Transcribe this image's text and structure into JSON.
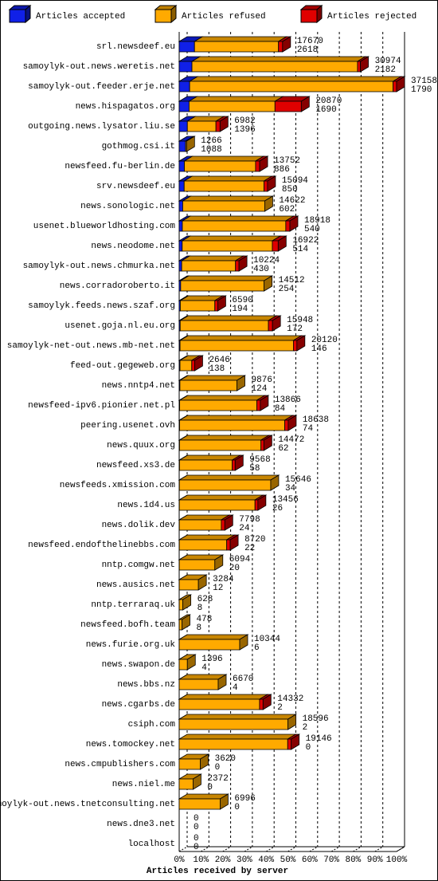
{
  "chart_data": {
    "type": "bar3d-stacked-horizontal",
    "x_label": "Articles received by server",
    "categories": [
      "srl.newsdeef.eu",
      "samoylyk-out.news.weretis.net",
      "samoylyk-out.feeder.erje.net",
      "news.hispagatos.org",
      "outgoing.news.lysator.liu.se",
      "gothmog.csi.it",
      "newsfeed.fu-berlin.de",
      "srv.newsdeef.eu",
      "news.sonologic.net",
      "usenet.blueworldhosting.com",
      "news.neodome.net",
      "samoylyk-out.news.chmurka.net",
      "news.corradoroberto.it",
      "samoylyk.feeds.news.szaf.org",
      "usenet.goja.nl.eu.org",
      "samoylyk-net-out.news.mb-net.net",
      "feed-out.gegeweb.org",
      "news.nntp4.net",
      "newsfeed-ipv6.pionier.net.pl",
      "peering.usenet.ovh",
      "news.quux.org",
      "newsfeed.xs3.de",
      "newsfeeds.xmission.com",
      "news.1d4.us",
      "news.dolik.dev",
      "newsfeed.endofthelinebbs.com",
      "nntp.comgw.net",
      "news.ausics.net",
      "nntp.terraraq.uk",
      "newsfeed.bofh.team",
      "news.furie.org.uk",
      "news.swapon.de",
      "news.bbs.nz",
      "news.cgarbs.de",
      "csiph.com",
      "news.tomockey.net",
      "news.cmpublishers.com",
      "news.niel.me",
      "samoylyk-out.news.tnetconsulting.net",
      "news.dne3.net",
      "localhost"
    ],
    "totals": [
      17670,
      30974,
      37158,
      20870,
      6982,
      1266,
      13752,
      15094,
      14622,
      18918,
      16922,
      10224,
      14512,
      6590,
      15948,
      20120,
      2646,
      9876,
      13866,
      18638,
      14472,
      9568,
      15646,
      13456,
      7798,
      8720,
      6094,
      3284,
      628,
      478,
      10344,
      1396,
      6670,
      14332,
      18596,
      19146,
      3620,
      2372,
      6996,
      0,
      0
    ],
    "series": [
      {
        "name": "Articles accepted",
        "color": "#1020e8",
        "values": [
          2618,
          2182,
          1790,
          1690,
          1396,
          1088,
          886,
          850,
          602,
          540,
          514,
          430,
          254,
          194,
          172,
          146,
          138,
          124,
          84,
          74,
          62,
          58,
          34,
          26,
          24,
          22,
          20,
          12,
          8,
          8,
          6,
          4,
          4,
          2,
          2,
          0,
          0,
          0,
          0,
          0,
          0
        ]
      },
      {
        "name": "Articles refused",
        "color": "#ffaa00",
        "values": [
          14352,
          28292,
          34768,
          14680,
          4886,
          178,
          12166,
          13644,
          14020,
          17678,
          15408,
          9194,
          14258,
          5896,
          15076,
          19374,
          2008,
          9752,
          13182,
          17964,
          13910,
          9010,
          15612,
          12930,
          7174,
          8098,
          6074,
          3272,
          620,
          470,
          10338,
          1392,
          6666,
          13730,
          18594,
          18546,
          3620,
          2372,
          6996,
          0,
          0
        ]
      },
      {
        "name": "Articles rejected",
        "color": "#e00000",
        "values": [
          700,
          500,
          600,
          4500,
          700,
          0,
          700,
          600,
          0,
          700,
          1000,
          600,
          0,
          500,
          700,
          600,
          500,
          0,
          600,
          600,
          500,
          500,
          0,
          500,
          600,
          600,
          0,
          0,
          0,
          0,
          0,
          0,
          0,
          600,
          0,
          600,
          0,
          0,
          0,
          0,
          0
        ]
      }
    ],
    "xlim": [
      0,
      37158
    ],
    "xticks": [
      {
        "value": 0,
        "label": "0%"
      },
      {
        "value": 3715.8,
        "label": "10%"
      },
      {
        "value": 7431.6,
        "label": "20%"
      },
      {
        "value": 11147.4,
        "label": "30%"
      },
      {
        "value": 14863.2,
        "label": "40%"
      },
      {
        "value": 18579,
        "label": "50%"
      },
      {
        "value": 22294.8,
        "label": "60%"
      },
      {
        "value": 26010.6,
        "label": "70%"
      },
      {
        "value": 29726.4,
        "label": "80%"
      },
      {
        "value": 33442.2,
        "label": "90%"
      },
      {
        "value": 37158,
        "label": "100%"
      }
    ],
    "grid": true
  }
}
